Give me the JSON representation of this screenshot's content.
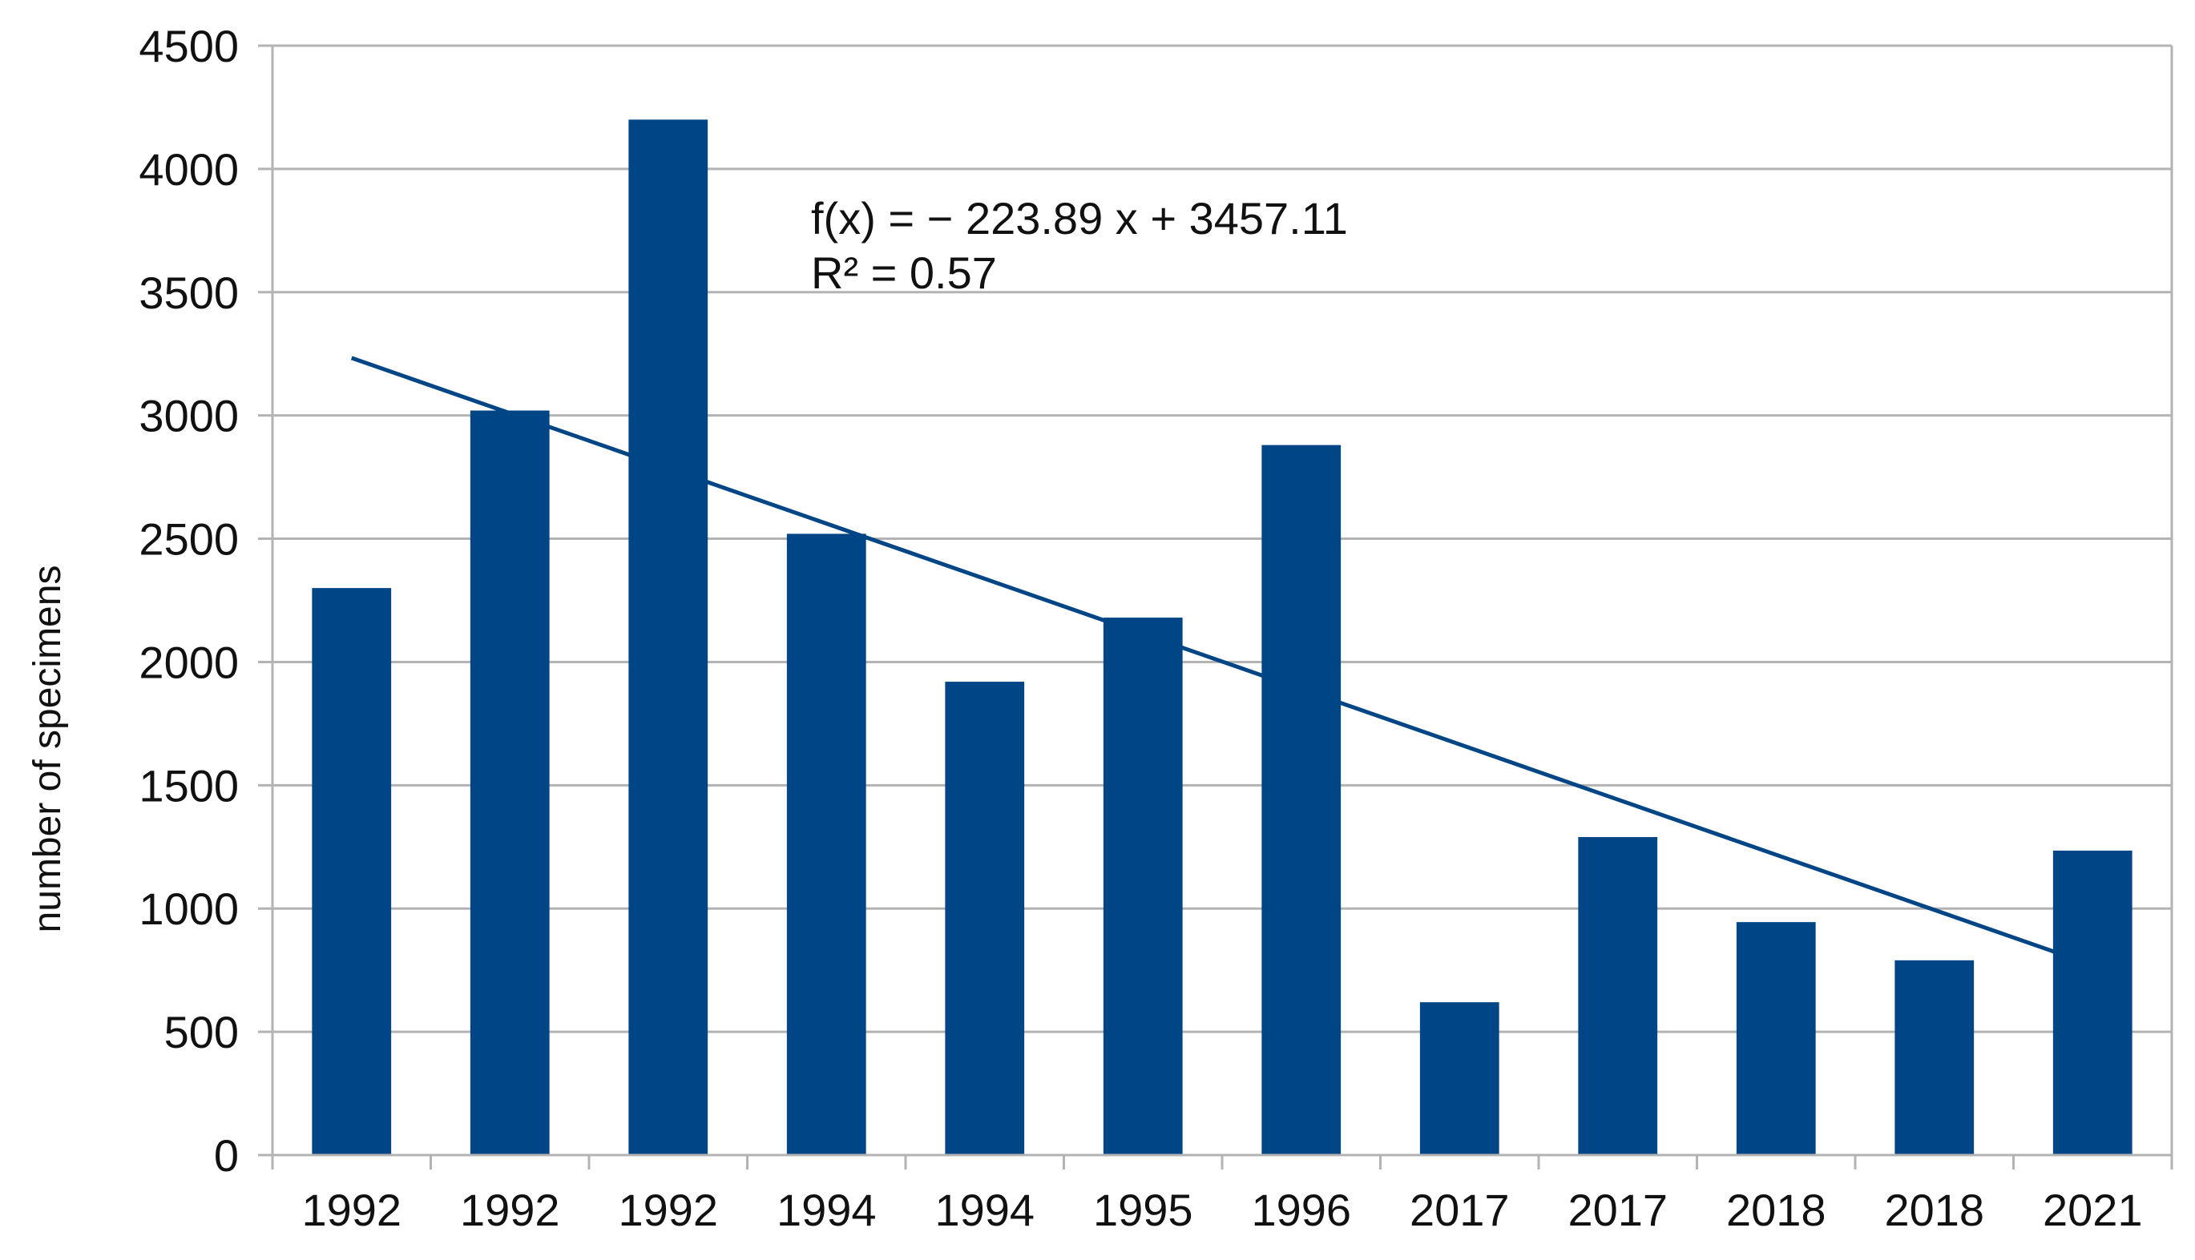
{
  "chart_data": {
    "type": "bar",
    "title": "",
    "xlabel": "",
    "ylabel": "number of specimens",
    "ylim": [
      0,
      4500
    ],
    "ytick_step": 500,
    "grid": true,
    "categories": [
      "1992",
      "1992",
      "1992",
      "1994",
      "1994",
      "1995",
      "1996",
      "2017",
      "2017",
      "2018",
      "2018",
      "2021"
    ],
    "series": [
      {
        "name": "specimens",
        "color": "#004586",
        "values": [
          2300,
          3020,
          4200,
          2520,
          1920,
          2180,
          2880,
          620,
          1290,
          945,
          790,
          1235
        ]
      }
    ],
    "trendline": {
      "type": "linear",
      "slope": -223.89,
      "intercept": 3457.11,
      "color": "#004586",
      "equation_label": "f(x) = − 223.89 x + 3457.11",
      "r2_label": "R² = 0.57"
    }
  }
}
